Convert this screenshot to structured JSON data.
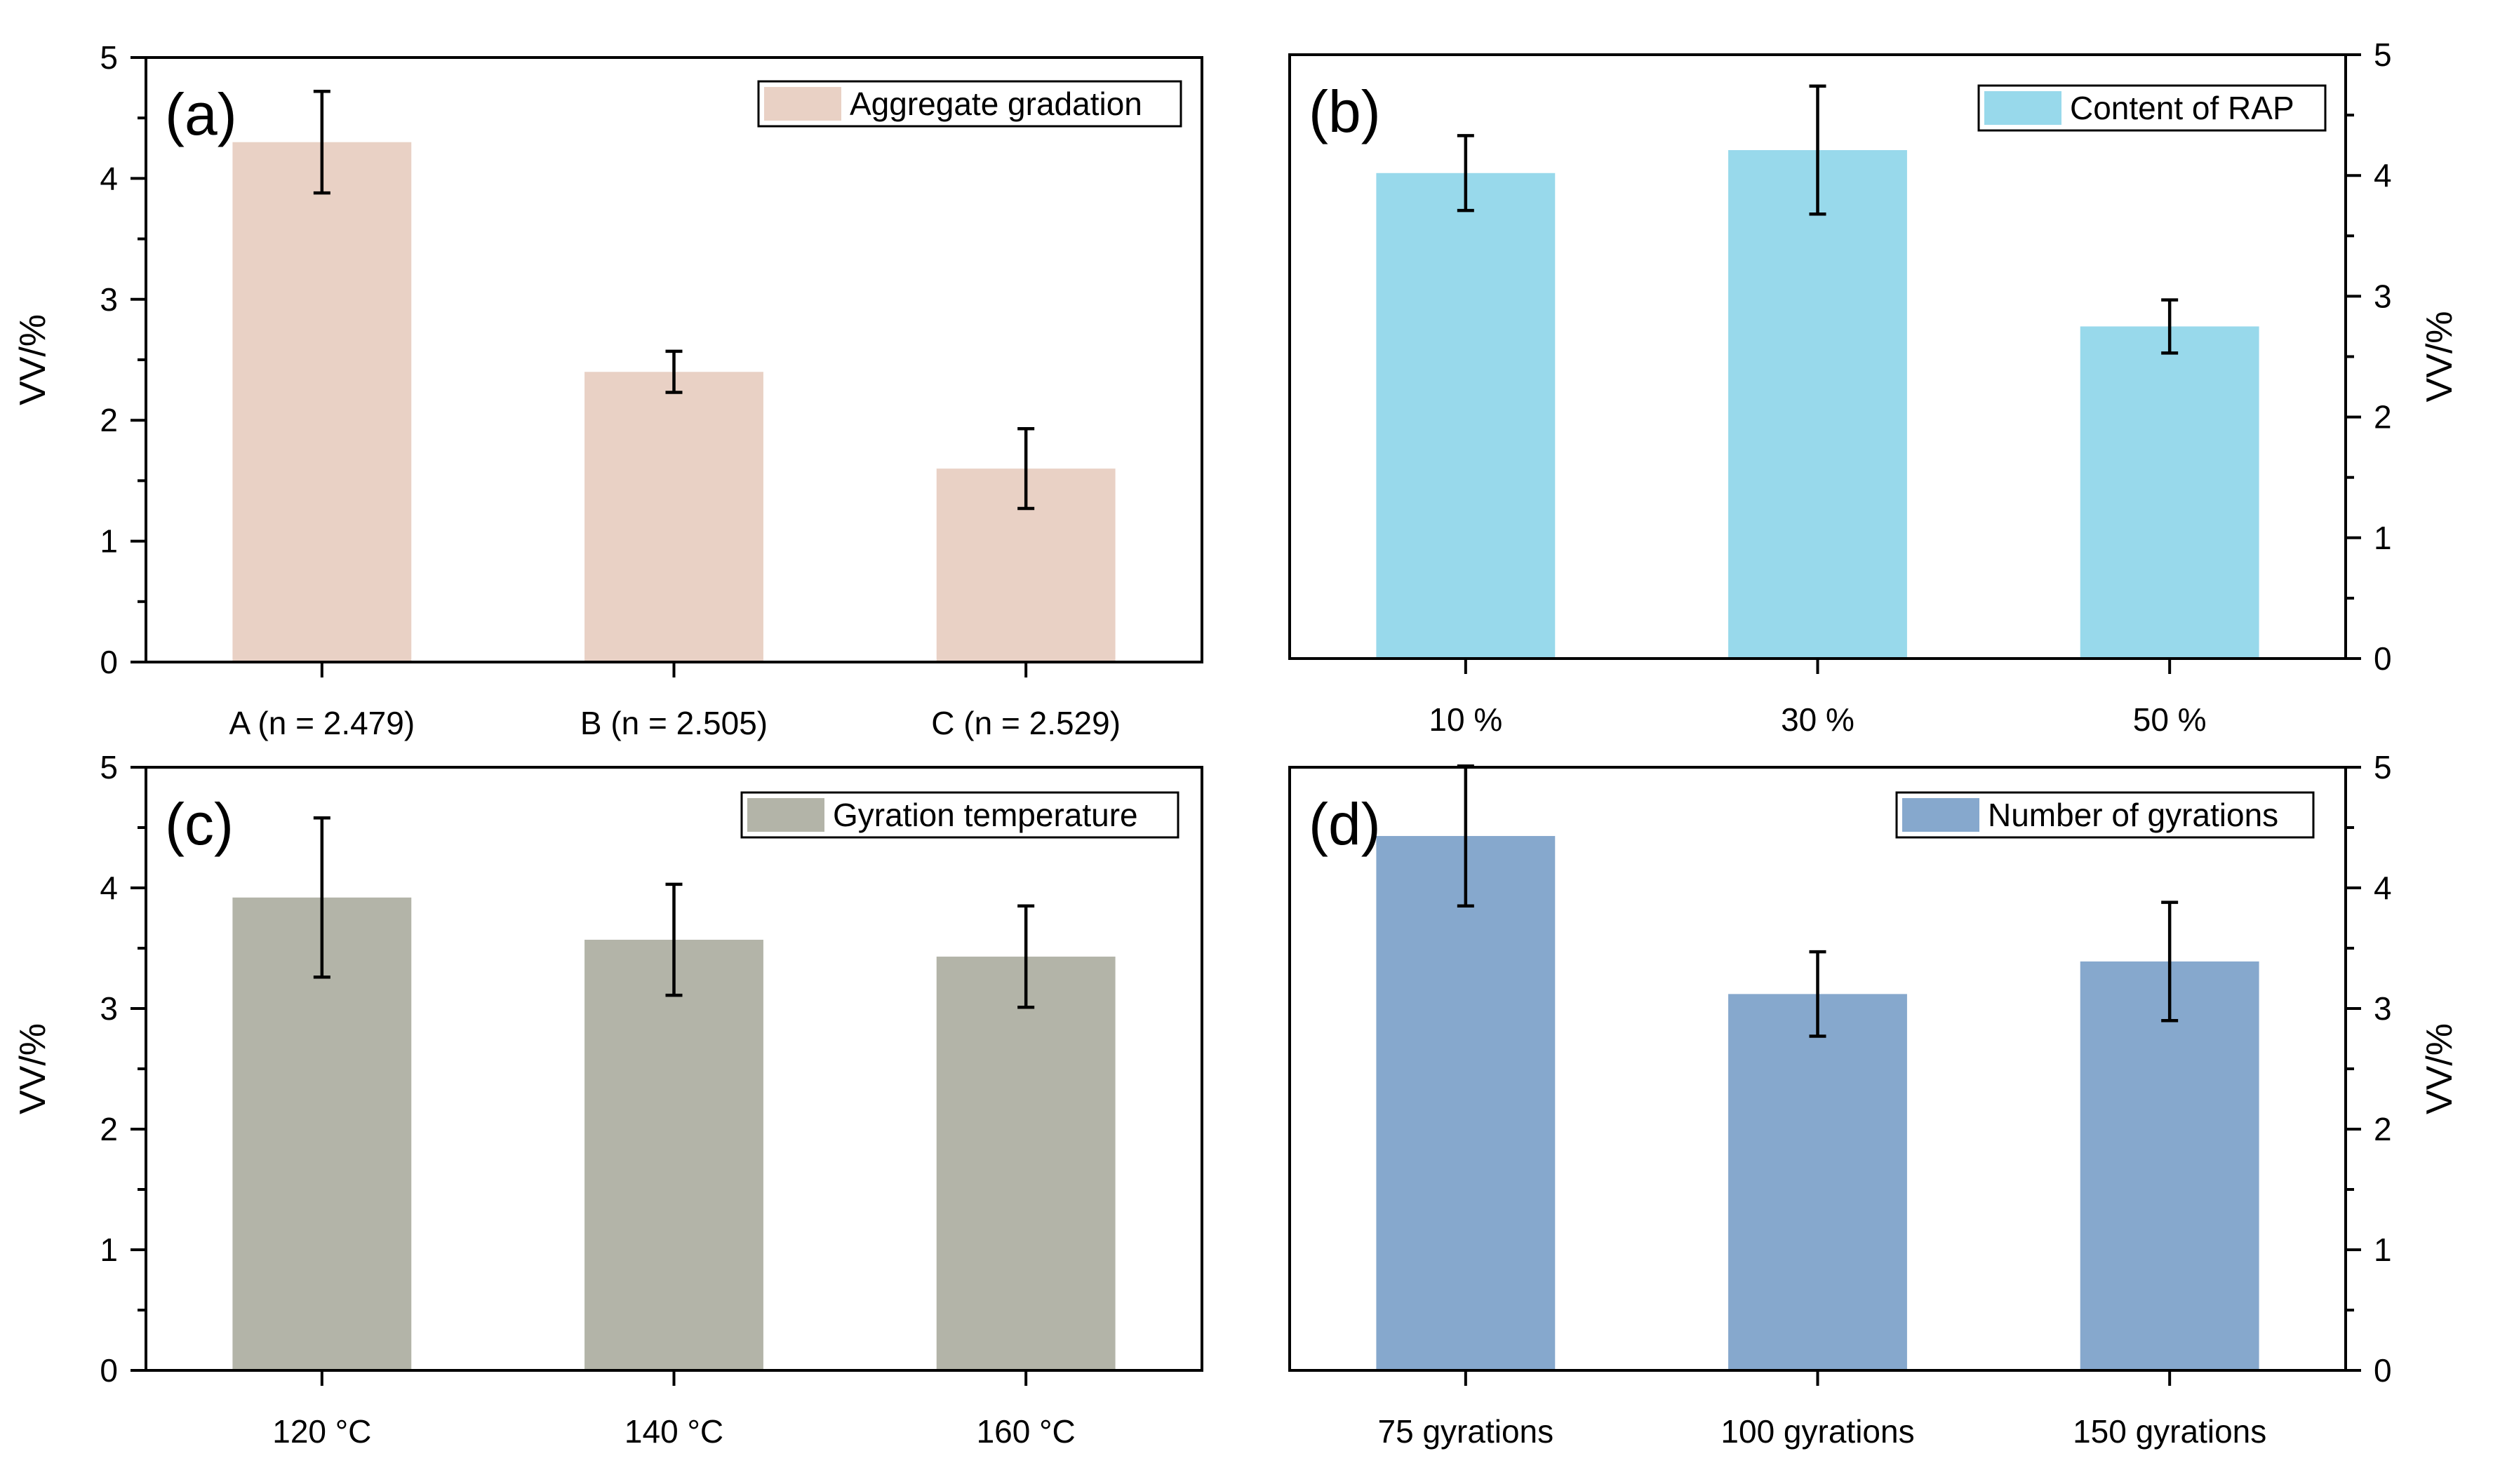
{
  "chart_data": [
    {
      "type": "bar",
      "panel_label": "(a)",
      "categories": [
        "A (n = 2.479)",
        "B (n = 2.505)",
        "C (n = 2.529)"
      ],
      "series": [
        {
          "name": "Aggregate gradation",
          "values": [
            4.3,
            2.4,
            1.6
          ],
          "errors": [
            0.42,
            0.17,
            0.33
          ],
          "color": "#e9d1c5"
        }
      ],
      "ylabel": "VV/%",
      "ylim": [
        0,
        5
      ],
      "yticks": [
        "0",
        "1",
        "2",
        "3",
        "4",
        "5"
      ],
      "y_axis_side": "left",
      "legend_position": "top-right"
    },
    {
      "type": "bar",
      "panel_label": "(b)",
      "categories": [
        "10 %",
        "30 %",
        "50 %"
      ],
      "series": [
        {
          "name": "Content of RAP",
          "values": [
            4.02,
            4.21,
            2.75
          ],
          "errors": [
            0.31,
            0.53,
            0.22
          ],
          "color": "#98d9eb"
        }
      ],
      "ylabel": "VV/%",
      "ylim": [
        0,
        5
      ],
      "yticks": [
        "0",
        "1",
        "2",
        "3",
        "4",
        "5"
      ],
      "y_axis_side": "right",
      "legend_position": "top-right"
    },
    {
      "type": "bar",
      "panel_label": "(c)",
      "categories": [
        "120 °C",
        "140 °C",
        "160 °C"
      ],
      "series": [
        {
          "name": "Gyration temperature",
          "values": [
            3.92,
            3.57,
            3.43
          ],
          "errors": [
            0.66,
            0.46,
            0.42
          ],
          "color": "#b3b4a8"
        }
      ],
      "ylabel": "VV/%",
      "ylim": [
        0,
        5
      ],
      "yticks": [
        "0",
        "1",
        "2",
        "3",
        "4",
        "5"
      ],
      "y_axis_side": "left",
      "legend_position": "top-right"
    },
    {
      "type": "bar",
      "panel_label": "(d)",
      "categories": [
        "75 gyrations",
        "100 gyrations",
        "150 gyrations"
      ],
      "series": [
        {
          "name": "Number of gyrations",
          "values": [
            4.43,
            3.12,
            3.39
          ],
          "errors": [
            0.58,
            0.35,
            0.49
          ],
          "color": "#86a8cd"
        }
      ],
      "ylabel": "VV/%",
      "ylim": [
        0,
        5
      ],
      "yticks": [
        "0",
        "1",
        "2",
        "3",
        "4",
        "5"
      ],
      "y_axis_side": "right",
      "legend_position": "top-right"
    }
  ]
}
